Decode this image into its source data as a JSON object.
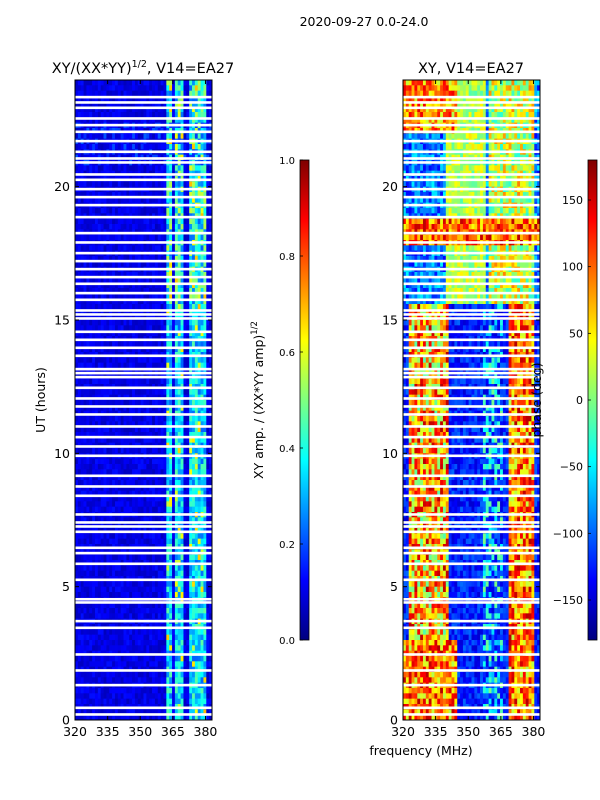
{
  "figure": {
    "suptitle": "2020-09-27 0.0-24.0",
    "xlabel": "frequency (MHz)"
  },
  "chart_data": [
    {
      "type": "heatmap",
      "title_main": "XY/(XX*YY)",
      "title_exp": "1/2",
      "title_tail": ", V14=EA27",
      "xlabel": "",
      "ylabel": "UT (hours)",
      "xlim": [
        320,
        383
      ],
      "ylim": [
        0,
        24
      ],
      "xticks": [
        320,
        335,
        350,
        365,
        380
      ],
      "yticks": [
        0,
        5,
        10,
        15,
        20
      ],
      "colorbar": {
        "label_main": "XY amp. / (XX*YY amp)",
        "label_exp": "1/2",
        "range": [
          0.0,
          1.0
        ],
        "ticks": [
          "0.0",
          "0.2",
          "0.4",
          "0.6",
          "0.8",
          "1.0"
        ],
        "tick_values": [
          0.0,
          0.2,
          0.4,
          0.6,
          0.8,
          1.0
        ],
        "colormap": "jet"
      },
      "flagged_hours": [
        0.2,
        0.45,
        1.3,
        1.85,
        2.45,
        3.45,
        3.7,
        4.4,
        4.52,
        5.25,
        5.85,
        6.25,
        6.45,
        7.05,
        7.25,
        7.4,
        7.7,
        8.4,
        8.75,
        9.15,
        9.9,
        10.25,
        10.6,
        11.0,
        11.45,
        11.75,
        12.05,
        12.45,
        12.85,
        13.0,
        13.15,
        13.65,
        13.95,
        14.25,
        14.55,
        15.05,
        15.2,
        15.35,
        15.75,
        16.0,
        16.35,
        16.6,
        16.9,
        17.2,
        17.5,
        17.9,
        18.25,
        18.85,
        19.3,
        19.6,
        19.9,
        20.25,
        20.45,
        20.9,
        21.05,
        21.3,
        21.7,
        22.05,
        22.3,
        22.55,
        22.95,
        23.15,
        23.35
      ],
      "feature_bands_mhz": [
        [
          362,
          365,
          "high"
        ],
        [
          366.5,
          370,
          "high"
        ],
        [
          373,
          376,
          "high"
        ],
        [
          377,
          380,
          "high"
        ]
      ]
    },
    {
      "type": "heatmap",
      "title_main": "XY, V14=EA27",
      "xlabel": "",
      "ylabel": "",
      "xlim": [
        320,
        383
      ],
      "ylim": [
        0,
        24
      ],
      "xticks": [
        320,
        335,
        350,
        365,
        380
      ],
      "yticks": [
        0,
        5,
        10,
        15,
        20
      ],
      "colorbar": {
        "label": "phase (deg)",
        "range": [
          -180,
          180
        ],
        "ticks": [
          "150",
          "100",
          "50",
          "0",
          "−50",
          "−100",
          "−150"
        ],
        "tick_values": [
          150,
          100,
          50,
          0,
          -50,
          -100,
          -150
        ],
        "colormap": "jet"
      },
      "flagged_hours": [
        0.2,
        0.45,
        1.3,
        1.85,
        2.45,
        3.45,
        3.7,
        4.4,
        4.52,
        5.25,
        5.85,
        6.25,
        6.45,
        7.05,
        7.25,
        7.4,
        7.7,
        8.4,
        8.75,
        9.15,
        9.9,
        10.25,
        10.6,
        11.0,
        11.45,
        11.75,
        12.05,
        12.45,
        12.85,
        13.0,
        13.15,
        13.65,
        13.95,
        14.25,
        14.55,
        15.05,
        15.2,
        15.35,
        15.75,
        16.0,
        16.35,
        16.6,
        16.9,
        17.2,
        17.5,
        17.9,
        18.25,
        18.85,
        19.3,
        19.6,
        19.9,
        20.25,
        20.45,
        20.9,
        21.05,
        21.3,
        21.7,
        22.05,
        22.3,
        22.55,
        22.95,
        23.15,
        23.35
      ]
    }
  ]
}
